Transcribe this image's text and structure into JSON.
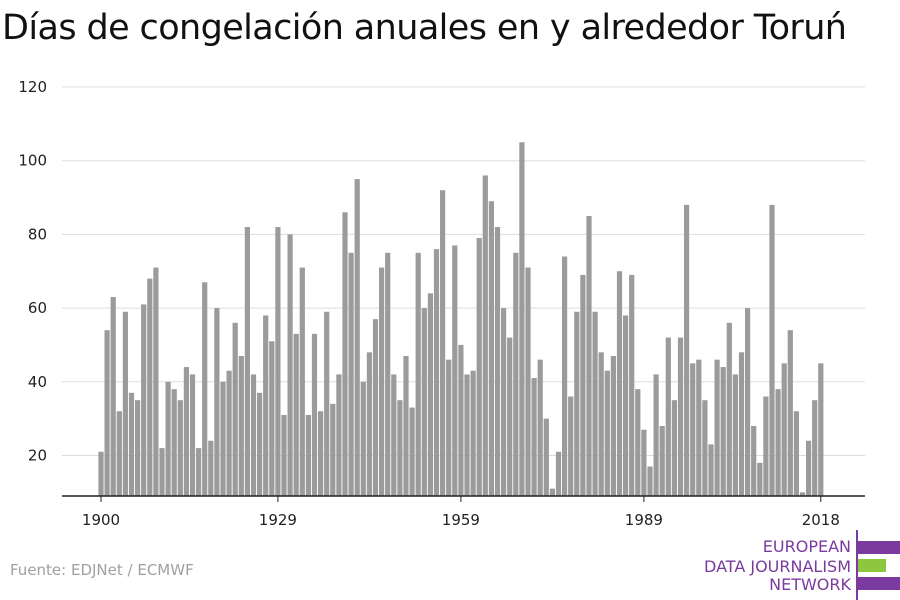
{
  "title": "Días de congelación anuales en y alrededor Toruń",
  "source": "Fuente: EDJNet / ECMWF",
  "logo": {
    "lines": [
      "EUROPEAN",
      "DATA JOURNALISM",
      "NETWORK"
    ],
    "colors": {
      "purple": "#7a3a9e",
      "green": "#8dc63f"
    }
  },
  "colors": {
    "bar": "#9b9b9b",
    "grid": "#dddddd",
    "axis": "#222222",
    "text": "#222222"
  },
  "chart_data": {
    "type": "bar",
    "title": "Días de congelación anuales en y alrededor Toruń",
    "xlabel": "",
    "ylabel": "",
    "ylim": [
      9,
      120
    ],
    "yticks": [
      20,
      40,
      60,
      80,
      100,
      120
    ],
    "xticks": [
      1900,
      1929,
      1959,
      1989,
      2018
    ],
    "grid": true,
    "x": [
      1900,
      1901,
      1902,
      1903,
      1904,
      1905,
      1906,
      1907,
      1908,
      1909,
      1910,
      1911,
      1912,
      1913,
      1914,
      1915,
      1916,
      1917,
      1918,
      1919,
      1920,
      1921,
      1922,
      1923,
      1924,
      1925,
      1926,
      1927,
      1928,
      1929,
      1930,
      1931,
      1932,
      1933,
      1934,
      1935,
      1936,
      1937,
      1938,
      1939,
      1940,
      1941,
      1942,
      1943,
      1944,
      1945,
      1946,
      1947,
      1948,
      1949,
      1950,
      1951,
      1952,
      1953,
      1954,
      1955,
      1956,
      1957,
      1958,
      1959,
      1960,
      1961,
      1962,
      1963,
      1964,
      1965,
      1966,
      1967,
      1968,
      1969,
      1970,
      1971,
      1972,
      1973,
      1974,
      1975,
      1976,
      1977,
      1978,
      1979,
      1980,
      1981,
      1982,
      1983,
      1984,
      1985,
      1986,
      1987,
      1988,
      1989,
      1990,
      1991,
      1992,
      1993,
      1994,
      1995,
      1996,
      1997,
      1998,
      1999,
      2000,
      2001,
      2002,
      2003,
      2004,
      2005,
      2006,
      2007,
      2008,
      2009,
      2010,
      2011,
      2012,
      2013,
      2014,
      2015,
      2016,
      2017,
      2018
    ],
    "values": [
      21,
      54,
      63,
      32,
      59,
      37,
      35,
      61,
      68,
      71,
      22,
      40,
      38,
      35,
      44,
      42,
      22,
      67,
      24,
      60,
      40,
      43,
      56,
      47,
      82,
      42,
      37,
      58,
      51,
      82,
      31,
      80,
      53,
      71,
      31,
      53,
      32,
      59,
      34,
      42,
      86,
      75,
      95,
      40,
      48,
      57,
      71,
      75,
      42,
      35,
      47,
      33,
      75,
      60,
      64,
      76,
      92,
      46,
      77,
      50,
      42,
      43,
      79,
      96,
      89,
      82,
      60,
      52,
      75,
      105,
      71,
      41,
      46,
      30,
      11,
      21,
      74,
      36,
      59,
      69,
      85,
      59,
      48,
      43,
      47,
      70,
      58,
      69,
      38,
      27,
      17,
      42,
      28,
      52,
      35,
      52,
      88,
      45,
      46,
      35,
      23,
      46,
      44,
      56,
      42,
      48,
      60,
      28,
      18,
      36,
      88,
      38,
      45,
      54,
      32,
      10,
      24,
      35,
      45
    ]
  }
}
